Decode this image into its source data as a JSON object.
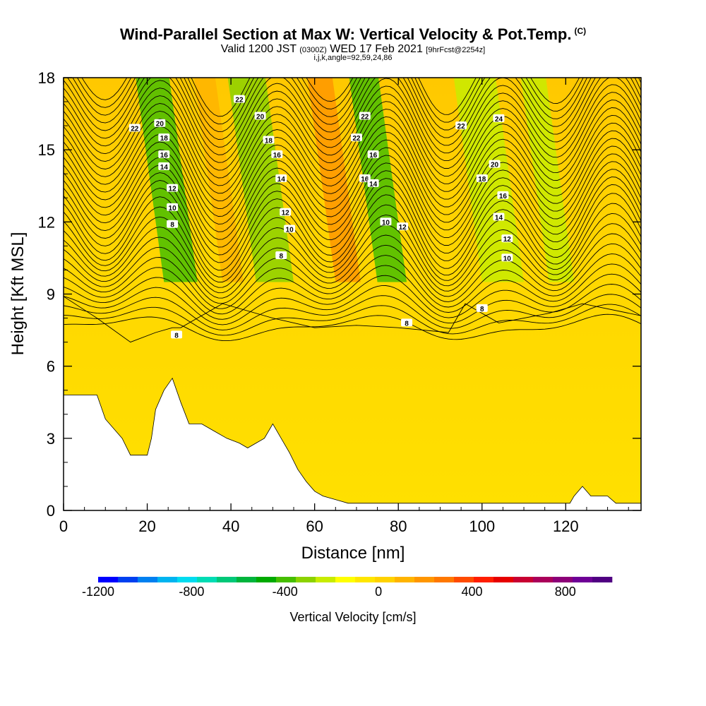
{
  "header": {
    "title": "Wind-Parallel Section at Max W: Vertical Velocity & Pot.Temp.",
    "copyright": "(C)",
    "valid_prefix": "Valid 1200 JST",
    "utc": "(0300Z)",
    "valid_date": "WED 17 Feb 2021",
    "forecast": "[9hrFcst@2254z]",
    "indices": "i,j,k,angle=92,59,24,86"
  },
  "chart_data": {
    "type": "heatmap",
    "title": "Wind-Parallel Section at Max W: Vertical Velocity & Pot.Temp.",
    "xlabel": "Distance [nm]",
    "ylabel": "Height [Kft MSL]",
    "xlim": [
      0,
      138
    ],
    "ylim": [
      0,
      18
    ],
    "x_ticks": [
      0,
      20,
      40,
      60,
      80,
      100,
      120
    ],
    "y_ticks": [
      0,
      3,
      6,
      9,
      12,
      15,
      18
    ],
    "colorbar": {
      "label": "Vertical Velocity [cm/s]",
      "min": -1200,
      "max": 900,
      "step": 100,
      "ticks": [
        -1200,
        -800,
        -400,
        0,
        400,
        800
      ],
      "colors": [
        "#0000ff",
        "#0040f0",
        "#0080f0",
        "#00b4f0",
        "#00dcf0",
        "#00dcb4",
        "#00c878",
        "#00b43c",
        "#00aa00",
        "#46be00",
        "#8cd200",
        "#c8ec00",
        "#ffff00",
        "#ffe600",
        "#ffd200",
        "#ffb400",
        "#ff9600",
        "#ff7800",
        "#ff4b00",
        "#ff1e00",
        "#e60000",
        "#c80032",
        "#aa005a",
        "#8c0078",
        "#6e0096",
        "#500082"
      ]
    },
    "pot_temp_contour_labels": [
      "8",
      "10",
      "12",
      "14",
      "16",
      "18",
      "20",
      "22",
      "24"
    ],
    "terrain": [
      [
        0,
        4.8
      ],
      [
        8,
        4.8
      ],
      [
        10,
        3.8
      ],
      [
        14,
        3
      ],
      [
        16,
        2.3
      ],
      [
        20,
        2.3
      ],
      [
        21,
        3
      ],
      [
        22,
        4.2
      ],
      [
        24,
        5
      ],
      [
        26,
        5.5
      ],
      [
        28,
        4.5
      ],
      [
        30,
        3.6
      ],
      [
        33,
        3.6
      ],
      [
        36,
        3.3
      ],
      [
        39,
        3
      ],
      [
        42,
        2.8
      ],
      [
        44,
        2.6
      ],
      [
        46,
        2.8
      ],
      [
        48,
        3
      ],
      [
        50,
        3.6
      ],
      [
        52,
        3
      ],
      [
        54,
        2.4
      ],
      [
        56,
        1.7
      ],
      [
        58,
        1.2
      ],
      [
        60,
        0.8
      ],
      [
        62,
        0.6
      ],
      [
        64,
        0.5
      ],
      [
        66,
        0.4
      ],
      [
        68,
        0.3
      ],
      [
        72,
        0.3
      ],
      [
        80,
        0.3
      ],
      [
        100,
        0.3
      ],
      [
        118,
        0.3
      ],
      [
        121,
        0.3
      ],
      [
        122,
        0.6
      ],
      [
        124,
        1
      ],
      [
        126,
        0.6
      ],
      [
        130,
        0.6
      ],
      [
        132,
        0.3
      ],
      [
        138,
        0.3
      ]
    ],
    "vertical_velocity_features": [
      {
        "x_range": [
          24,
          32
        ],
        "value": -300
      },
      {
        "x_range": [
          46,
          55
        ],
        "value": -200
      },
      {
        "x_range": [
          75,
          82
        ],
        "value": -300
      },
      {
        "x_range": [
          65,
          71
        ],
        "value": 400
      },
      {
        "x_range": [
          38,
          43
        ],
        "value": 300
      },
      {
        "x_range": [
          100,
          110
        ],
        "value": -100
      },
      {
        "x_range": [
          116,
          122
        ],
        "value": -100
      }
    ]
  }
}
